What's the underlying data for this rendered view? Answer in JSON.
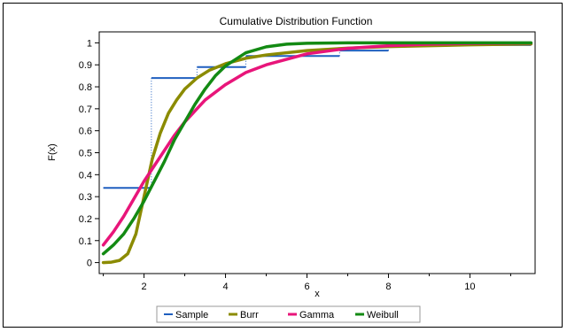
{
  "chart_data": {
    "type": "line",
    "title": "Cumulative Distribution Function",
    "xlabel": "x",
    "ylabel": "F(x)",
    "xlim": [
      0.9,
      11.6
    ],
    "ylim": [
      -0.05,
      1.05
    ],
    "xticks": [
      2,
      4,
      6,
      8,
      10
    ],
    "yticks": [
      0,
      0.1,
      0.2,
      0.3,
      0.4,
      0.5,
      0.6,
      0.7,
      0.8,
      0.9,
      1
    ],
    "grid": false,
    "legend_position": "bottom",
    "series": [
      {
        "name": "Sample",
        "kind": "step",
        "color": "#1f5fbf",
        "x": [
          1.0,
          2.18,
          3.3,
          4.5,
          6.8,
          8.0,
          11.5
        ],
        "y": [
          0.34,
          0.84,
          0.89,
          0.94,
          0.965,
          0.99,
          1.0
        ]
      },
      {
        "name": "Burr",
        "kind": "line",
        "color": "#8b8b00",
        "x": [
          1.0,
          1.2,
          1.4,
          1.6,
          1.8,
          2.0,
          2.2,
          2.4,
          2.6,
          2.8,
          3.0,
          3.3,
          3.6,
          4.0,
          4.5,
          5.0,
          6.0,
          7.0,
          8.0,
          10.0,
          11.5
        ],
        "y": [
          0.0,
          0.002,
          0.01,
          0.04,
          0.13,
          0.3,
          0.47,
          0.59,
          0.68,
          0.74,
          0.79,
          0.84,
          0.875,
          0.905,
          0.93,
          0.945,
          0.965,
          0.976,
          0.983,
          0.991,
          0.995
        ]
      },
      {
        "name": "Gamma",
        "kind": "line",
        "color": "#e8157a",
        "x": [
          1.0,
          1.25,
          1.5,
          1.75,
          2.0,
          2.25,
          2.5,
          2.75,
          3.0,
          3.25,
          3.5,
          4.0,
          4.5,
          5.0,
          6.0,
          7.0,
          8.0,
          9.0,
          10.0,
          11.5
        ],
        "y": [
          0.08,
          0.14,
          0.21,
          0.29,
          0.37,
          0.44,
          0.51,
          0.58,
          0.64,
          0.69,
          0.74,
          0.81,
          0.865,
          0.9,
          0.95,
          0.975,
          0.987,
          0.994,
          0.997,
          0.999
        ]
      },
      {
        "name": "Weibull",
        "kind": "line",
        "color": "#138a13",
        "x": [
          1.0,
          1.25,
          1.5,
          1.75,
          2.0,
          2.25,
          2.5,
          2.75,
          3.0,
          3.25,
          3.5,
          3.75,
          4.0,
          4.5,
          5.0,
          5.5,
          6.0,
          7.0,
          8.0,
          11.5
        ],
        "y": [
          0.04,
          0.08,
          0.13,
          0.2,
          0.28,
          0.37,
          0.46,
          0.56,
          0.64,
          0.72,
          0.79,
          0.85,
          0.895,
          0.955,
          0.982,
          0.994,
          0.998,
          1.0,
          1.0,
          1.0
        ]
      }
    ]
  }
}
